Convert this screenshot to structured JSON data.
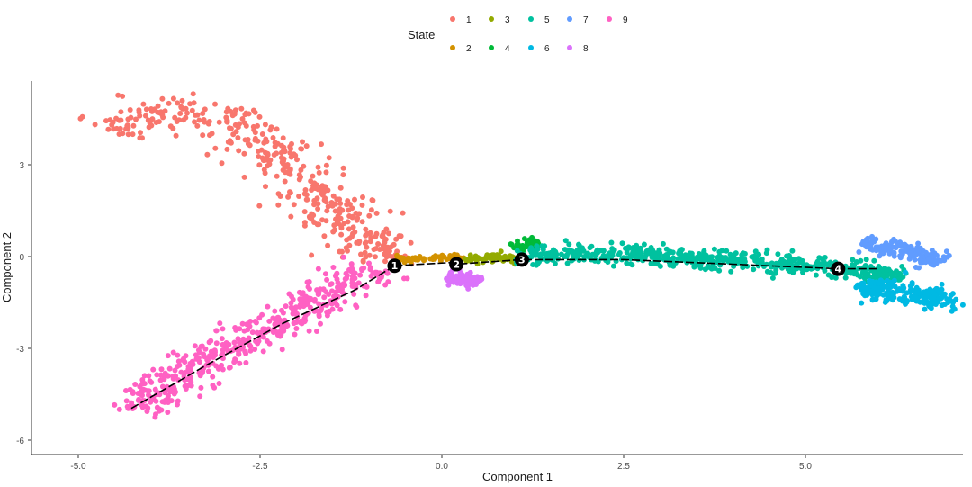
{
  "chart_data": {
    "type": "scatter",
    "xlabel": "Component 1",
    "ylabel": "Component 2",
    "xlim": [
      -6.1,
      7.2
    ],
    "ylim": [
      -6.6,
      5.6
    ],
    "xticks": [
      -5.0,
      -2.5,
      0.0,
      2.5,
      5.0
    ],
    "xtick_labels": [
      "-5.0",
      "-2.5",
      "0.0",
      "2.5",
      "5.0"
    ],
    "yticks": [
      3,
      0,
      -3,
      -6
    ],
    "ytick_labels": [
      "3",
      "0",
      "-3",
      "-6"
    ],
    "grid": false,
    "legend": {
      "title": "State",
      "placement": "top",
      "entries": [
        {
          "label": "1",
          "color": "#F8766D"
        },
        {
          "label": "2",
          "color": "#D39200"
        },
        {
          "label": "3",
          "color": "#93AA00"
        },
        {
          "label": "4",
          "color": "#00BA38"
        },
        {
          "label": "5",
          "color": "#00C19F"
        },
        {
          "label": "6",
          "color": "#00B9E3"
        },
        {
          "label": "7",
          "color": "#619CFF"
        },
        {
          "label": "8",
          "color": "#DB72FB"
        },
        {
          "label": "9",
          "color": "#FF61C3"
        }
      ]
    },
    "series": [
      {
        "name": "1",
        "color": "#F8766D",
        "shape": "arc",
        "path": [
          [
            -4.5,
            4.1
          ],
          [
            -3.9,
            4.8
          ],
          [
            -3.2,
            4.7
          ],
          [
            -2.4,
            3.6
          ],
          [
            -1.5,
            1.6
          ],
          [
            -0.7,
            -0.2
          ]
        ],
        "spread": 0.55,
        "n": 420
      },
      {
        "name": "2",
        "color": "#D39200",
        "shape": "band",
        "path": [
          [
            -0.7,
            -0.15
          ],
          [
            -0.3,
            -0.05
          ],
          [
            0.1,
            -0.05
          ],
          [
            0.3,
            -0.1
          ]
        ],
        "spread": 0.12,
        "n": 70
      },
      {
        "name": "3",
        "color": "#93AA00",
        "shape": "band",
        "path": [
          [
            0.3,
            -0.1
          ],
          [
            0.6,
            -0.05
          ],
          [
            0.9,
            -0.05
          ],
          [
            1.1,
            -0.1
          ]
        ],
        "spread": 0.12,
        "n": 60
      },
      {
        "name": "4",
        "color": "#00BA38",
        "shape": "blob",
        "path": [
          [
            1.0,
            0.3
          ],
          [
            1.3,
            0.5
          ]
        ],
        "spread": 0.15,
        "n": 45
      },
      {
        "name": "5",
        "color": "#00C19F",
        "shape": "band",
        "path": [
          [
            1.1,
            0.0
          ],
          [
            2.5,
            0.1
          ],
          [
            4.0,
            -0.15
          ],
          [
            5.5,
            -0.4
          ],
          [
            6.3,
            -0.7
          ]
        ],
        "spread": 0.3,
        "n": 600
      },
      {
        "name": "6",
        "color": "#00B9E3",
        "shape": "blob",
        "path": [
          [
            5.8,
            -0.9
          ],
          [
            6.5,
            -1.4
          ],
          [
            7.0,
            -1.3
          ]
        ],
        "spread": 0.35,
        "n": 220
      },
      {
        "name": "7",
        "color": "#619CFF",
        "shape": "blob",
        "path": [
          [
            5.8,
            0.4
          ],
          [
            6.4,
            0.2
          ],
          [
            6.9,
            -0.1
          ]
        ],
        "spread": 0.25,
        "n": 160
      },
      {
        "name": "8",
        "color": "#DB72FB",
        "shape": "blob",
        "path": [
          [
            0.1,
            -0.7
          ],
          [
            0.5,
            -0.8
          ]
        ],
        "spread": 0.2,
        "n": 110
      },
      {
        "name": "9",
        "color": "#FF61C3",
        "shape": "arc",
        "path": [
          [
            -0.9,
            -0.3
          ],
          [
            -1.7,
            -1.5
          ],
          [
            -2.8,
            -2.8
          ],
          [
            -3.6,
            -3.9
          ],
          [
            -4.2,
            -5.0
          ]
        ],
        "spread": 0.45,
        "n": 460
      }
    ],
    "trajectory": [
      [
        -0.65,
        -0.3
      ],
      [
        -1.2,
        -1.1
      ],
      [
        -2.2,
        -2.2
      ],
      [
        -3.2,
        -3.5
      ],
      [
        -4.3,
        -5.0
      ]
    ],
    "trajectory_main": [
      [
        -0.65,
        -0.3
      ],
      [
        0.1,
        -0.2
      ],
      [
        0.2,
        -0.25
      ],
      [
        1.1,
        -0.1
      ],
      [
        2.5,
        -0.1
      ],
      [
        4.0,
        -0.25
      ],
      [
        5.45,
        -0.4
      ],
      [
        6.0,
        -0.4
      ]
    ],
    "branch_points": [
      {
        "label": "1",
        "x": -0.65,
        "y": -0.3
      },
      {
        "label": "2",
        "x": 0.2,
        "y": -0.25
      },
      {
        "label": "3",
        "x": 1.1,
        "y": -0.1
      },
      {
        "label": "4",
        "x": 5.45,
        "y": -0.4
      }
    ]
  }
}
